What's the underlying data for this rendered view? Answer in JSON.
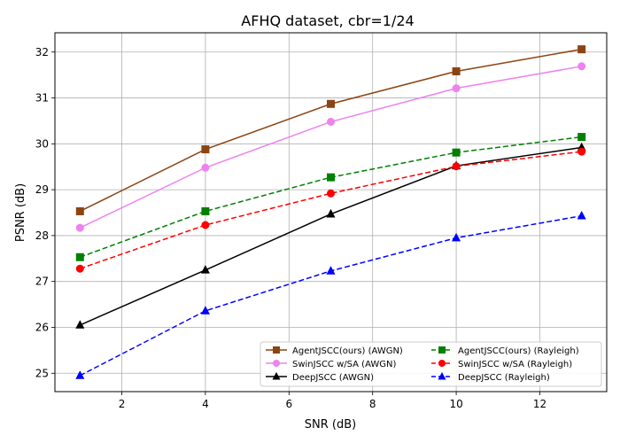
{
  "chart_data": {
    "type": "line",
    "title": "AFHQ dataset, cbr=1/24",
    "xlabel": "SNR (dB)",
    "ylabel": "PSNR (dB)",
    "xlim": [
      0.4,
      13.6
    ],
    "ylim": [
      24.6,
      32.42
    ],
    "xticks": [
      2,
      4,
      6,
      8,
      10,
      12
    ],
    "yticks": [
      25,
      26,
      27,
      28,
      29,
      30,
      31,
      32
    ],
    "grid": true,
    "legend_position": "lower-right",
    "legend_columns": 2,
    "x": [
      1,
      4,
      7,
      10,
      13
    ],
    "series": [
      {
        "name": "AgentJSCC(ours) (AWGN)",
        "color": "#8B4513",
        "dashed": false,
        "marker": "square",
        "values": [
          28.53,
          29.88,
          30.87,
          31.58,
          32.06
        ]
      },
      {
        "name": "SwinJSCC w/SA (AWGN)",
        "color": "#EE82EE",
        "dashed": false,
        "marker": "circle",
        "values": [
          28.17,
          29.48,
          30.48,
          31.21,
          31.69
        ]
      },
      {
        "name": "DeepJSCC (AWGN)",
        "color": "#000000",
        "dashed": false,
        "marker": "triangle",
        "values": [
          26.05,
          27.25,
          28.47,
          29.52,
          29.92
        ]
      },
      {
        "name": "AgentJSCC(ours) (Rayleigh)",
        "color": "#008000",
        "dashed": true,
        "marker": "square",
        "values": [
          27.53,
          28.53,
          29.27,
          29.81,
          30.15
        ]
      },
      {
        "name": "SwinJSCC w/SA (Rayleigh)",
        "color": "#FF0000",
        "dashed": true,
        "marker": "circle",
        "values": [
          27.28,
          28.23,
          28.92,
          29.51,
          29.83
        ]
      },
      {
        "name": "DeepJSCC (Rayleigh)",
        "color": "#0000FF",
        "dashed": true,
        "marker": "triangle",
        "values": [
          24.95,
          26.36,
          27.23,
          27.95,
          28.43
        ]
      }
    ]
  }
}
